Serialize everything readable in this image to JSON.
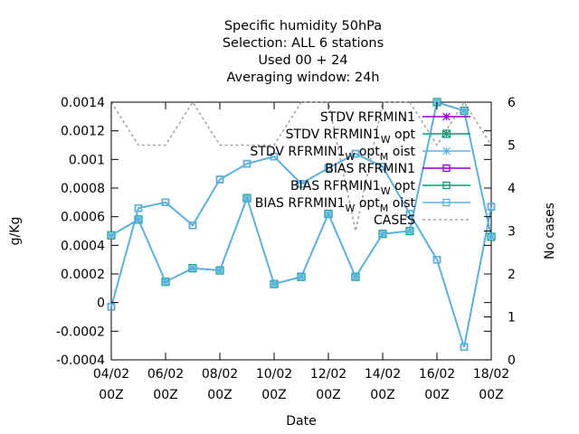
{
  "chart_data": {
    "type": "line",
    "title_lines": [
      "Specific humidity 50hPa",
      "Selection: ALL       6 stations",
      "Used  00 + 24",
      "Averaging window: 24h"
    ],
    "xlabel": "Date",
    "ylabel": "g/Kg",
    "y2label": "No cases",
    "x_ticks": [
      {
        "date": "2023-02-04T00:00",
        "line1": "04/02",
        "line2": "00Z"
      },
      {
        "date": "2023-02-06T00:00",
        "line1": "06/02",
        "line2": "00Z"
      },
      {
        "date": "2023-02-08T00:00",
        "line1": "08/02",
        "line2": "00Z"
      },
      {
        "date": "2023-02-10T00:00",
        "line1": "10/02",
        "line2": "00Z"
      },
      {
        "date": "2023-02-12T00:00",
        "line1": "12/02",
        "line2": "00Z"
      },
      {
        "date": "2023-02-14T00:00",
        "line1": "14/02",
        "line2": "00Z"
      },
      {
        "date": "2023-02-16T00:00",
        "line1": "16/02",
        "line2": "00Z"
      },
      {
        "date": "2023-02-18T00:00",
        "line1": "18/02",
        "line2": "00Z"
      }
    ],
    "xlim": [
      "2023-02-04T00:00",
      "2023-02-18T00:00"
    ],
    "ylim": [
      -0.0004,
      0.0014
    ],
    "y_ticks": [
      "-0.0004",
      "-0.0002",
      "0",
      "0.0002",
      "0.0004",
      "0.0006",
      "0.0008",
      "0.001",
      "0.0012",
      "0.0014"
    ],
    "y2lim": [
      0,
      6
    ],
    "y2_ticks": [
      "0",
      "1",
      "2",
      "3",
      "4",
      "5",
      "6"
    ],
    "x": [
      "2023-02-04T00:00",
      "2023-02-05T00:00",
      "2023-02-06T00:00",
      "2023-02-07T00:00",
      "2023-02-08T00:00",
      "2023-02-09T00:00",
      "2023-02-10T00:00",
      "2023-02-11T00:00",
      "2023-02-12T00:00",
      "2023-02-13T00:00",
      "2023-02-14T00:00",
      "2023-02-15T00:00",
      "2023-02-16T00:00",
      "2023-02-17T00:00",
      "2023-02-18T00:00"
    ],
    "series": [
      {
        "name": "STDV RFRMIN1",
        "color": "#9400d3",
        "marker": "star",
        "axis": "y1",
        "values": [
          0.00047,
          0.00058,
          0.000145,
          0.00024,
          0.000225,
          0.00073,
          0.00013,
          0.00018,
          0.00062,
          0.00018,
          0.00048,
          0.0005,
          0.0014,
          0.00134,
          0.00046
        ]
      },
      {
        "name_parts": [
          "STDV RFRMIN1",
          "W",
          " opt"
        ],
        "color": "#009e73",
        "marker": "box-star",
        "axis": "y1",
        "values": [
          0.00047,
          0.00058,
          0.000145,
          0.00024,
          0.000225,
          0.00073,
          0.00013,
          0.00018,
          0.00062,
          0.00018,
          0.00048,
          0.0005,
          0.0014,
          0.00134,
          0.00046
        ]
      },
      {
        "name_parts": [
          "STDV RFRMIN1",
          "W",
          " opt",
          "M",
          " oist"
        ],
        "color": "#56b4e9",
        "marker": "star",
        "axis": "y1",
        "values": [
          0.00047,
          0.00058,
          0.000145,
          0.00024,
          0.000225,
          0.00073,
          0.00013,
          0.00018,
          0.00062,
          0.00018,
          0.00048,
          0.0005,
          0.0014,
          0.00134,
          0.00046
        ]
      },
      {
        "name": "BIAS RFRMIN1",
        "color": "#9400d3",
        "marker": "square",
        "axis": "y1",
        "values": [
          -3e-05,
          0.00066,
          0.0007,
          0.00054,
          0.00086,
          0.00097,
          0.00102,
          0.00083,
          0.00094,
          0.00104,
          0.00095,
          0.00062,
          0.0003,
          -0.00031,
          0.00067
        ]
      },
      {
        "name_parts": [
          "BIAS RFRMIN1",
          "W",
          " opt"
        ],
        "color": "#009e73",
        "marker": "square",
        "axis": "y1",
        "values": [
          -3e-05,
          0.00066,
          0.0007,
          0.00054,
          0.00086,
          0.00097,
          0.00102,
          0.00083,
          0.00094,
          0.00104,
          0.00095,
          0.00062,
          0.0003,
          -0.00031,
          0.00067
        ]
      },
      {
        "name_parts": [
          "BIAS RFRMIN1",
          "W",
          " opt",
          "M",
          " oist"
        ],
        "color": "#56b4e9",
        "marker": "square",
        "axis": "y1",
        "values": [
          -3e-05,
          0.00066,
          0.0007,
          0.00054,
          0.00086,
          0.00097,
          0.00102,
          0.00083,
          0.00094,
          0.00104,
          0.00095,
          0.00062,
          0.0003,
          -0.00031,
          0.00067
        ]
      },
      {
        "name": "CASES",
        "color": "#a0a0a0",
        "marker": "none",
        "dash": true,
        "axis": "y2",
        "values": [
          6,
          5,
          5,
          6,
          5,
          5,
          5,
          6,
          6,
          3,
          6,
          6,
          5,
          6,
          5
        ]
      }
    ],
    "legend_position": "top-right",
    "grid": false
  }
}
